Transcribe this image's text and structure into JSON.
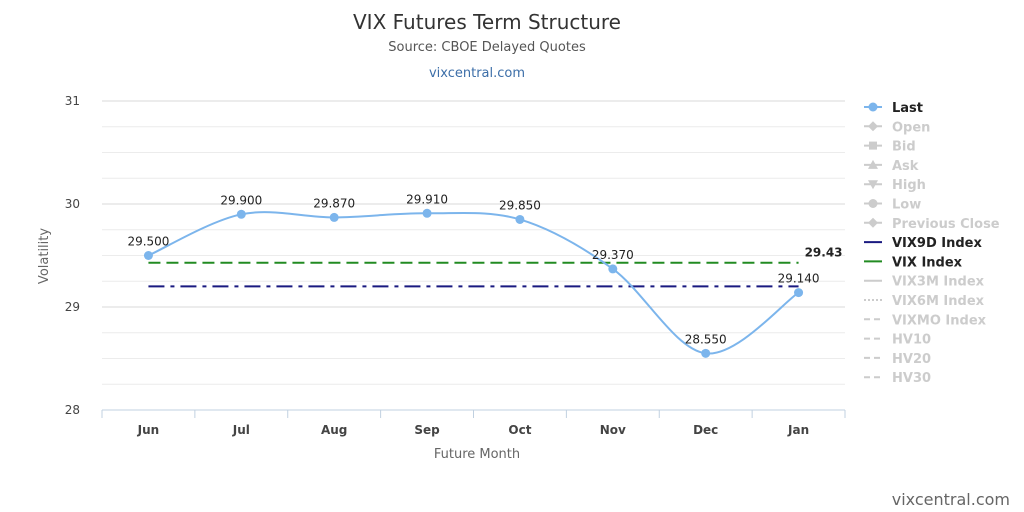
{
  "chart_data": {
    "type": "line",
    "title": "VIX Futures Term Structure",
    "subtitle": "Source: CBOE Delayed Quotes",
    "site_link": "vixcentral.com",
    "xlabel": "Future Month",
    "ylabel": "Volatility",
    "categories": [
      "Jun",
      "Jul",
      "Aug",
      "Sep",
      "Oct",
      "Nov",
      "Dec",
      "Jan"
    ],
    "ylim": [
      28,
      31
    ],
    "yticks": [
      "28",
      "29",
      "30",
      "31"
    ],
    "grid": true,
    "legend_placement": "right",
    "series": [
      {
        "name": "Last",
        "color": "#7cb5ec",
        "values": [
          29.5,
          29.9,
          29.87,
          29.91,
          29.85,
          29.37,
          28.55,
          29.14
        ],
        "data_labels": [
          "29.500",
          "29.900",
          "29.870",
          "29.910",
          "29.850",
          "29.370",
          "28.550",
          "29.140"
        ]
      },
      {
        "name": "VIX9D Index",
        "color": "#1a1a80",
        "constant": 29.2,
        "dash": "dash-dot"
      },
      {
        "name": "VIX Index",
        "color": "#228b22",
        "constant": 29.43,
        "dash": "dash",
        "end_label": "29.43"
      }
    ],
    "legend": [
      {
        "label": "Last",
        "active": true,
        "color": "#7cb5ec",
        "marker": "circle"
      },
      {
        "label": "Open",
        "active": false,
        "marker": "diamond"
      },
      {
        "label": "Bid",
        "active": false,
        "marker": "square"
      },
      {
        "label": "Ask",
        "active": false,
        "marker": "triangle"
      },
      {
        "label": "High",
        "active": false,
        "marker": "triangle-down"
      },
      {
        "label": "Low",
        "active": false,
        "marker": "circle"
      },
      {
        "label": "Previous Close",
        "active": false,
        "marker": "diamond"
      },
      {
        "label": "VIX9D Index",
        "active": true,
        "color": "#1a1a80",
        "marker": "line"
      },
      {
        "label": "VIX Index",
        "active": true,
        "color": "#228b22",
        "marker": "line"
      },
      {
        "label": "VIX3M Index",
        "active": false,
        "marker": "line"
      },
      {
        "label": "VIX6M Index",
        "active": false,
        "marker": "dotted"
      },
      {
        "label": "VIXMO Index",
        "active": false,
        "marker": "dashed"
      },
      {
        "label": "HV10",
        "active": false,
        "marker": "dashed"
      },
      {
        "label": "HV20",
        "active": false,
        "marker": "dashed"
      },
      {
        "label": "HV30",
        "active": false,
        "marker": "dashed"
      }
    ],
    "credit": "vixcentral.com"
  }
}
